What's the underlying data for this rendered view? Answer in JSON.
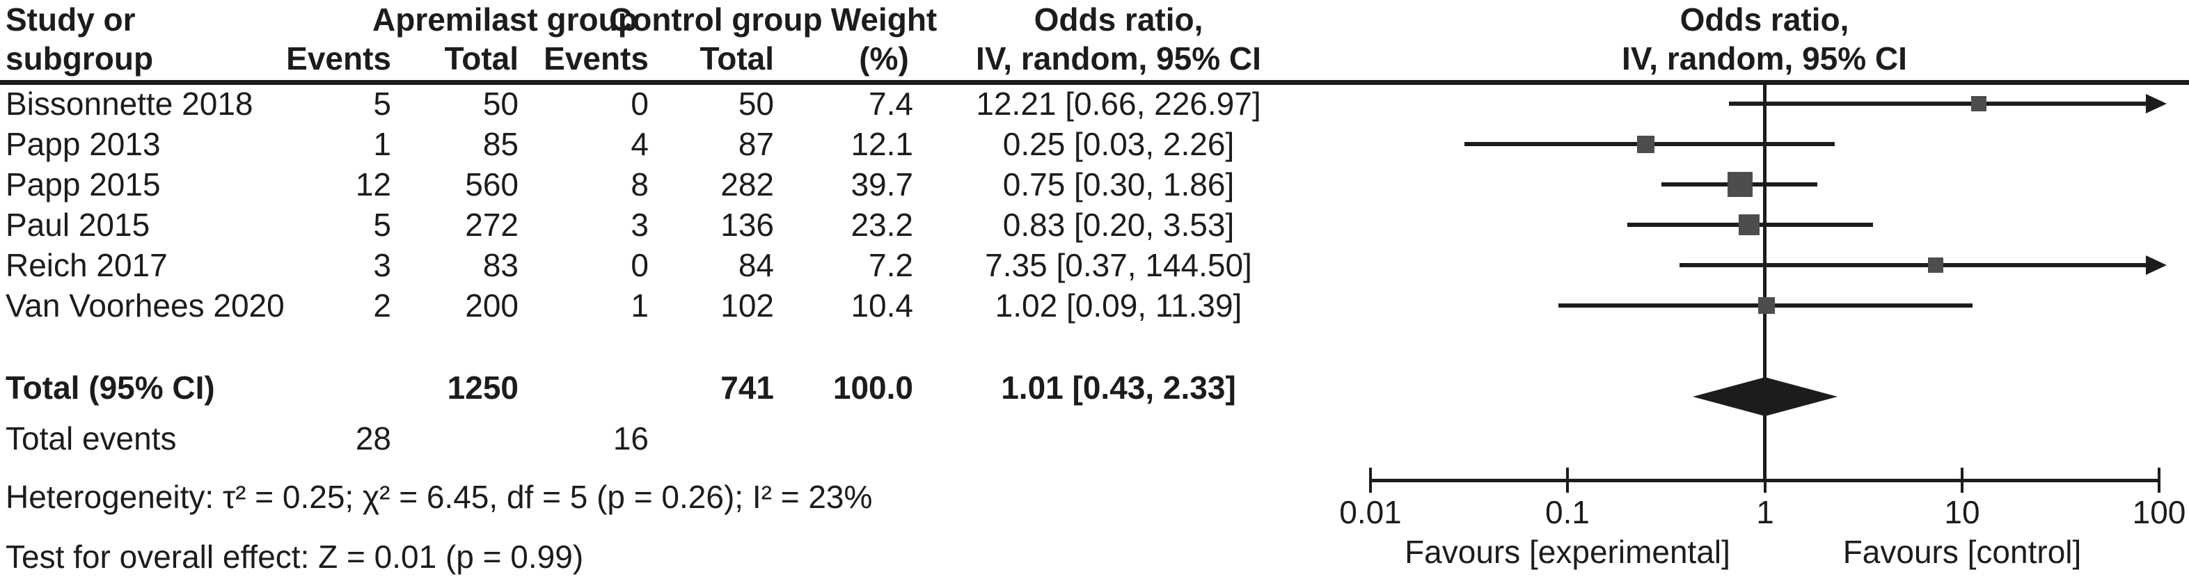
{
  "colors": {
    "text": "#1c1c1c",
    "line": "#1c1c1c",
    "marker_square": "#4d4d4d",
    "summary_diamond": "#1c1c1c",
    "background": "#ffffff"
  },
  "header": {
    "study_line1": "Study or",
    "study_line2": "subgroup",
    "group1_label": "Apremilast group",
    "group2_label": "Control group",
    "events_label1": "Events",
    "total_label1": "Total",
    "events_label2": "Events",
    "total_label2": "Total",
    "weight_line1": "Weight",
    "weight_line2": "(%)",
    "or_col_line1": "Odds ratio,",
    "or_col_line2": "IV, random, 95% CI",
    "plot_col_line1": "Odds ratio,",
    "plot_col_line2": "IV, random, 95% CI"
  },
  "table": {
    "rows": [
      {
        "study": "Bissonnette 2018",
        "e1": "5",
        "t1": "50",
        "e2": "0",
        "t2": "50",
        "weight": "7.4",
        "or_ci": "12.21 [0.66, 226.97]"
      },
      {
        "study": "Papp 2013",
        "e1": "1",
        "t1": "85",
        "e2": "4",
        "t2": "87",
        "weight": "12.1",
        "or_ci": "0.25 [0.03, 2.26]"
      },
      {
        "study": "Papp 2015",
        "e1": "12",
        "t1": "560",
        "e2": "8",
        "t2": "282",
        "weight": "39.7",
        "or_ci": "0.75 [0.30, 1.86]"
      },
      {
        "study": "Paul 2015",
        "e1": "5",
        "t1": "272",
        "e2": "3",
        "t2": "136",
        "weight": "23.2",
        "or_ci": "0.83 [0.20, 3.53]"
      },
      {
        "study": "Reich 2017",
        "e1": "3",
        "t1": "83",
        "e2": "0",
        "t2": "84",
        "weight": "7.2",
        "or_ci": "7.35 [0.37, 144.50]"
      },
      {
        "study": "Van Voorhees 2020",
        "e1": "2",
        "t1": "200",
        "e2": "1",
        "t2": "102",
        "weight": "10.4",
        "or_ci": "1.02 [0.09, 11.39]"
      }
    ],
    "total_row": {
      "label": "Total (95% CI)",
      "t1": "1250",
      "t2": "741",
      "weight": "100.0",
      "or_ci": "1.01 [0.43, 2.33]"
    },
    "total_events_row": {
      "label": "Total events",
      "e1": "28",
      "e2": "16"
    },
    "heterogeneity": "Heterogeneity: τ² = 0.25; χ² = 6.45, df = 5 (p = 0.26); I² = 23%",
    "overall_effect": "Test for overall effect: Z = 0.01 (p = 0.99)"
  },
  "axis": {
    "tick_labels": [
      "0.01",
      "0.1",
      "1",
      "10",
      "100"
    ],
    "favours_left": "Favours [experimental]",
    "favours_right": "Favours [control]"
  },
  "chart_data": {
    "type": "scatter",
    "variant": "forest_plot_meta_analysis",
    "effect_measure": "Odds ratio, IV, random, 95% CI",
    "x_scale": "log10",
    "x_ticks": [
      0.01,
      0.1,
      1,
      10,
      100
    ],
    "x_range": [
      0.01,
      100
    ],
    "reference_line": 1,
    "xlabel_left": "Favours [experimental]",
    "xlabel_right": "Favours [control]",
    "studies": [
      {
        "name": "Bissonnette 2018",
        "apremilast_events": 5,
        "apremilast_total": 50,
        "control_events": 0,
        "control_total": 50,
        "weight_pct": 7.4,
        "or": 12.21,
        "ci_low": 0.66,
        "ci_high": 226.97
      },
      {
        "name": "Papp 2013",
        "apremilast_events": 1,
        "apremilast_total": 85,
        "control_events": 4,
        "control_total": 87,
        "weight_pct": 12.1,
        "or": 0.25,
        "ci_low": 0.03,
        "ci_high": 2.26
      },
      {
        "name": "Papp 2015",
        "apremilast_events": 12,
        "apremilast_total": 560,
        "control_events": 8,
        "control_total": 282,
        "weight_pct": 39.7,
        "or": 0.75,
        "ci_low": 0.3,
        "ci_high": 1.86
      },
      {
        "name": "Paul 2015",
        "apremilast_events": 5,
        "apremilast_total": 272,
        "control_events": 3,
        "control_total": 136,
        "weight_pct": 23.2,
        "or": 0.83,
        "ci_low": 0.2,
        "ci_high": 3.53
      },
      {
        "name": "Reich 2017",
        "apremilast_events": 3,
        "apremilast_total": 83,
        "control_events": 0,
        "control_total": 84,
        "weight_pct": 7.2,
        "or": 7.35,
        "ci_low": 0.37,
        "ci_high": 144.5
      },
      {
        "name": "Van Voorhees 2020",
        "apremilast_events": 2,
        "apremilast_total": 200,
        "control_events": 1,
        "control_total": 102,
        "weight_pct": 10.4,
        "or": 1.02,
        "ci_low": 0.09,
        "ci_high": 11.39
      }
    ],
    "summary": {
      "label": "Total (95% CI)",
      "apremilast_total": 1250,
      "control_total": 741,
      "total_events_apremilast": 28,
      "total_events_control": 16,
      "weight_pct": 100.0,
      "or": 1.01,
      "ci_low": 0.43,
      "ci_high": 2.33
    },
    "heterogeneity": {
      "tau2": 0.25,
      "chi2": 6.45,
      "df": 5,
      "p": 0.26,
      "i2_pct": 23
    },
    "overall_effect": {
      "z": 0.01,
      "p": 0.99
    }
  }
}
